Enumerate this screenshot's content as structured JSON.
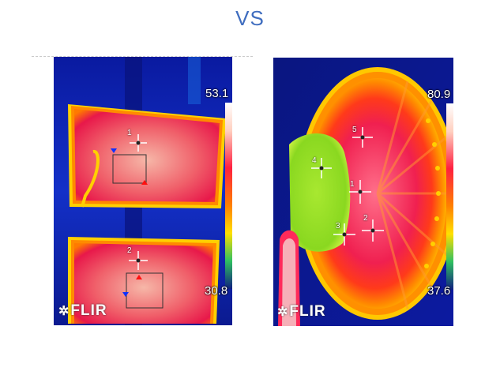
{
  "title": "VS",
  "left_image": {
    "scale_max": "53.1",
    "scale_min": "30.8",
    "logo": "FLIR",
    "spots": [
      "1",
      "2"
    ]
  },
  "right_image": {
    "scale_max": "80.9",
    "scale_min": "37.6",
    "logo": "FLIR",
    "spots": [
      "1",
      "2",
      "3",
      "4",
      "5"
    ]
  }
}
